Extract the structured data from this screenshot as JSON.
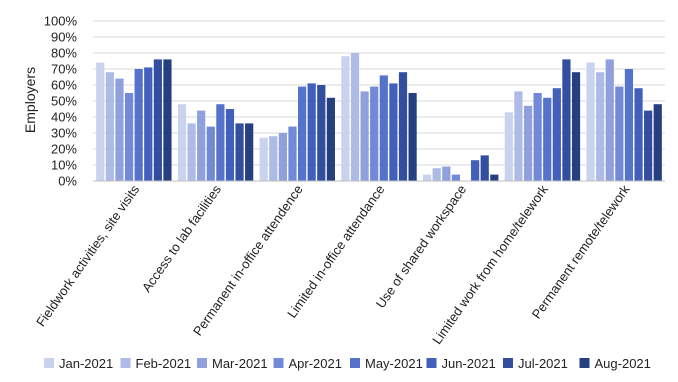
{
  "chart_data": {
    "type": "bar",
    "ylabel": "Employers",
    "xlabel": "",
    "ylim": [
      0,
      100
    ],
    "y_ticks": [
      "0%",
      "10%",
      "20%",
      "30%",
      "40%",
      "50%",
      "60%",
      "70%",
      "80%",
      "90%",
      "100%"
    ],
    "grid": true,
    "legend_position": "bottom",
    "categories": [
      "Fieldwork activities, site visits",
      "Access to lab facilities",
      "Permanent in-office attendence",
      "Limited in-office attendance",
      "Use of shared workspace",
      "Limited work from home/telework",
      "Permanent remote/telework"
    ],
    "series": [
      {
        "name": "Jan-2021",
        "color": "#c9d3ee",
        "values": [
          74,
          48,
          27,
          78,
          4,
          43,
          74
        ]
      },
      {
        "name": "Feb-2021",
        "color": "#adbbe6",
        "values": [
          68,
          36,
          28,
          80,
          8,
          56,
          68
        ]
      },
      {
        "name": "Mar-2021",
        "color": "#8fa0dc",
        "values": [
          64,
          44,
          30,
          56,
          9,
          47,
          76
        ]
      },
      {
        "name": "Apr-2021",
        "color": "#7189d6",
        "values": [
          55,
          34,
          34,
          59,
          4,
          55,
          59
        ]
      },
      {
        "name": "May-2021",
        "color": "#5673cc",
        "values": [
          70,
          48,
          59,
          66,
          0,
          52,
          70
        ]
      },
      {
        "name": "Jun-2021",
        "color": "#4260bb",
        "values": [
          71,
          45,
          61,
          61,
          13,
          58,
          58
        ]
      },
      {
        "name": "Jul-2021",
        "color": "#334e9f",
        "values": [
          76,
          36,
          60,
          68,
          16,
          76,
          44
        ]
      },
      {
        "name": "Aug-2021",
        "color": "#26407f",
        "values": [
          76,
          36,
          52,
          55,
          4,
          68,
          48
        ]
      }
    ]
  }
}
